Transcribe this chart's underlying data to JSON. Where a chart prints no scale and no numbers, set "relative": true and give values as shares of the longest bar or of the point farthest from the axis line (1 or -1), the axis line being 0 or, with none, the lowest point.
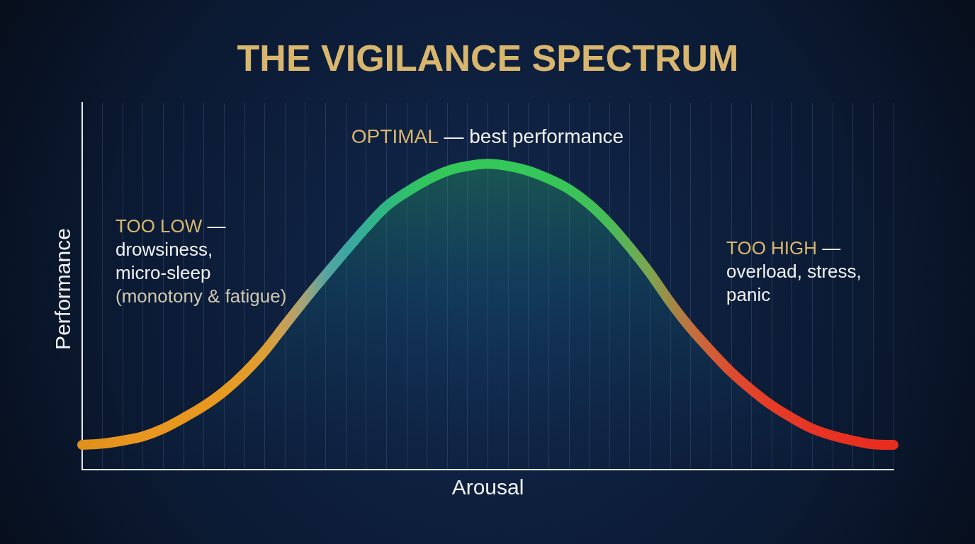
{
  "chart_data": {
    "type": "area",
    "title": "THE VIGILANCE SPECTRUM",
    "xlabel": "Arousal",
    "ylabel": "Performance",
    "relative": true,
    "grid": "x",
    "categories": [
      null,
      null,
      null,
      null,
      null,
      null,
      null,
      null,
      null,
      null,
      null,
      null,
      null,
      null,
      null,
      null,
      null,
      null,
      null,
      null,
      null,
      null,
      null,
      null,
      null,
      null,
      null,
      null,
      null,
      null,
      null,
      null,
      null,
      null,
      null,
      null,
      null,
      null,
      null,
      null,
      null
    ],
    "values": [
      0.081,
      0.085,
      0.095,
      0.109,
      0.134,
      0.169,
      0.208,
      0.256,
      0.316,
      0.388,
      0.473,
      0.557,
      0.637,
      0.716,
      0.792,
      0.861,
      0.908,
      0.947,
      0.977,
      0.993,
      1,
      0.993,
      0.977,
      0.951,
      0.917,
      0.868,
      0.804,
      0.727,
      0.642,
      0.547,
      0.462,
      0.388,
      0.319,
      0.261,
      0.21,
      0.169,
      0.134,
      0.111,
      0.095,
      0.083,
      0.081
    ],
    "color": "#34c759",
    "colors": [
      "#e08f1c",
      "#e5931e",
      "#e8951f",
      "#e8961f",
      "#e8961f",
      "#e8971f",
      "#e8981f",
      "#e69a22",
      "#e49c28",
      "#dc9e34",
      "#c8a058",
      "#a0a47a",
      "#58a4a0",
      "#3ca7a2",
      "#34b092",
      "#2eb880",
      "#30c06c",
      "#33c55e",
      "#34c759",
      "#34c759",
      "#34c759",
      "#34c759",
      "#34c759",
      "#36c658",
      "#3ac458",
      "#40c058",
      "#4aba58",
      "#62b055",
      "#7da550",
      "#a08a48",
      "#c0723f",
      "#d35e37",
      "#dc4c30",
      "#e2432b",
      "#e53c28",
      "#e63826",
      "#e73424",
      "#e83222",
      "#e83020",
      "#e82e1f",
      "#e82c1e"
    ],
    "annotations": [
      "TOO LOW —\ndrowsiness,\nmicro-sleep\n(monotony & fatigue)",
      "OPTIMAL — best performance",
      "TOO HIGH —\noverload, stress,\npanic"
    ]
  }
}
